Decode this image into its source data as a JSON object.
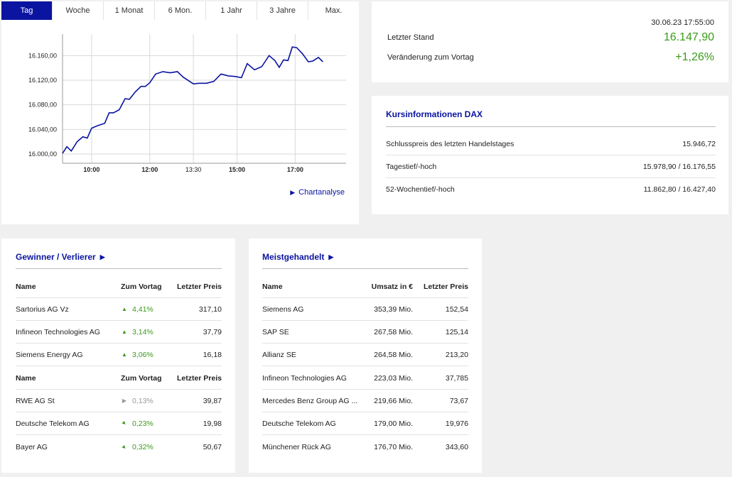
{
  "tabs": [
    {
      "label": "Tag",
      "active": true
    },
    {
      "label": "Woche",
      "active": false
    },
    {
      "label": "1 Monat",
      "active": false
    },
    {
      "label": "6 Mon.",
      "active": false
    },
    {
      "label": "1 Jahr",
      "active": false
    },
    {
      "label": "3 Jahre",
      "active": false
    },
    {
      "label": "Max.",
      "active": false
    }
  ],
  "chart_data": {
    "type": "line",
    "y_ticks": [
      "16.160,00",
      "16.120,00",
      "16.080,00",
      "16.040,00",
      "16.000,00"
    ],
    "y_tick_values": [
      16160,
      16120,
      16080,
      16040,
      16000
    ],
    "ylim": [
      15985,
      16195
    ],
    "x_ticks": [
      {
        "label": "10:00",
        "t": 10.0,
        "bold": true
      },
      {
        "label": "12:00",
        "t": 12.0,
        "bold": true
      },
      {
        "label": "13:30",
        "t": 13.5,
        "bold": false
      },
      {
        "label": "15:00",
        "t": 15.0,
        "bold": true
      },
      {
        "label": "17:00",
        "t": 17.0,
        "bold": true
      }
    ],
    "xlim": [
      9.0,
      18.75
    ],
    "x": [
      9.0,
      9.15,
      9.3,
      9.5,
      9.7,
      9.85,
      10.0,
      10.2,
      10.45,
      10.6,
      10.75,
      10.95,
      11.15,
      11.3,
      11.5,
      11.7,
      11.85,
      12.0,
      12.2,
      12.45,
      12.7,
      12.95,
      13.15,
      13.5,
      13.7,
      13.95,
      14.2,
      14.45,
      14.7,
      14.95,
      15.15,
      15.35,
      15.6,
      15.85,
      16.1,
      16.3,
      16.45,
      16.6,
      16.75,
      16.9,
      17.05,
      17.25,
      17.45,
      17.6,
      17.8,
      17.95
    ],
    "values": [
      16001,
      16012,
      16005,
      16020,
      16028,
      16026,
      16042,
      16046,
      16050,
      16067,
      16067,
      16072,
      16090,
      16089,
      16101,
      16110,
      16110,
      16116,
      16130,
      16134,
      16132,
      16134,
      16125,
      16114,
      16115,
      16115,
      16118,
      16130,
      16127,
      16126,
      16124,
      16147,
      16137,
      16142,
      16160,
      16152,
      16141,
      16153,
      16152,
      16174,
      16173,
      16163,
      16150,
      16151,
      16157,
      16150
    ]
  },
  "chartanalyse": {
    "label": "Chartanalyse"
  },
  "stand": {
    "datetime": "30.06.23 17:55:00",
    "last_label": "Letzter Stand",
    "last_value": "16.147,90",
    "change_label": "Veränderung zum Vortag",
    "change_value": "+1,26%",
    "color_positive": "#3a9a1a"
  },
  "kurs": {
    "title": "Kursinformationen DAX",
    "rows": [
      {
        "label": "Schlusspreis des letzten Handelstages",
        "value": "15.946,72"
      },
      {
        "label": "Tagestief/-hoch",
        "value": "15.978,90 / 16.176,55"
      },
      {
        "label": "52-Wochentief/-hoch",
        "value": "11.862,80 / 16.427,40"
      }
    ]
  },
  "gewinner": {
    "title": "Gewinner / Verlierer",
    "header": {
      "name": "Name",
      "change": "Zum Vortag",
      "price": "Letzter Preis"
    },
    "rows": [
      {
        "name": "Sartorius AG Vz",
        "change": "4,41%",
        "dir": "up",
        "price": "317,10"
      },
      {
        "name": "Infineon Technologies AG",
        "change": "3,14%",
        "dir": "up",
        "price": "37,79"
      },
      {
        "name": "Siemens Energy AG",
        "change": "3,06%",
        "dir": "up",
        "price": "16,18"
      }
    ],
    "header2": {
      "name": "Name",
      "change": "Zum Vortag",
      "price": "Letzter Preis"
    },
    "rows2": [
      {
        "name": "RWE AG St",
        "change": "0,13%",
        "dir": "flat",
        "price": "39,87"
      },
      {
        "name": "Deutsche Telekom AG",
        "change": "0,23%",
        "dir": "down",
        "price": "19,98"
      },
      {
        "name": "Bayer AG",
        "change": "0,32%",
        "dir": "down",
        "price": "50,67"
      }
    ]
  },
  "meist": {
    "title": "Meistgehandelt",
    "header": {
      "name": "Name",
      "umsatz": "Umsatz in €",
      "price": "Letzter Preis"
    },
    "rows": [
      {
        "name": "Siemens AG",
        "umsatz": "353,39 Mio.",
        "price": "152,54"
      },
      {
        "name": "SAP SE",
        "umsatz": "267,58 Mio.",
        "price": "125,14"
      },
      {
        "name": "Allianz SE",
        "umsatz": "264,58 Mio.",
        "price": "213,20"
      },
      {
        "name": "Infineon Technologies AG",
        "umsatz": "223,03 Mio.",
        "price": "37,785"
      },
      {
        "name": "Mercedes Benz Group AG ...",
        "umsatz": "219,66 Mio.",
        "price": "73,67"
      },
      {
        "name": "Deutsche Telekom AG",
        "umsatz": "179,00 Mio.",
        "price": "19,976"
      },
      {
        "name": "Münchener Rück AG",
        "umsatz": "176,70 Mio.",
        "price": "343,60"
      }
    ]
  }
}
